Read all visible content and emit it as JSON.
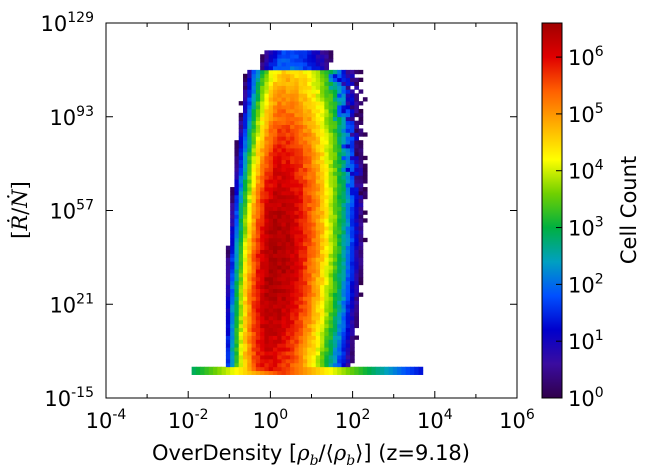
{
  "chart_data": {
    "type": "heatmap",
    "title": "",
    "xlabel": "OverDensity [ρb/⟨ρb⟩] (z=9.18)",
    "xlabel_parts": {
      "prefix": "OverDensity [",
      "rho": "ρ",
      "sub": "b",
      "slash": "/⟨",
      "rho2": "ρ",
      "sub2": "b",
      "close": "⟩] (z=9.18)"
    },
    "ylabel": "[Ṙ/Ṅ]",
    "ylabel_parts": {
      "open": "[",
      "r": "Ṙ",
      "slash": "/",
      "n": "Ṅ",
      "close": "]"
    },
    "xscale": "log",
    "yscale": "log",
    "xlim_log10": [
      -4,
      6
    ],
    "ylim_log10": [
      -15,
      129
    ],
    "x_ticks": [
      {
        "base": "10",
        "exp": "-4",
        "log10": -4
      },
      {
        "base": "10",
        "exp": "-2",
        "log10": -2
      },
      {
        "base": "10",
        "exp": "0",
        "log10": 0
      },
      {
        "base": "10",
        "exp": "2",
        "log10": 2
      },
      {
        "base": "10",
        "exp": "4",
        "log10": 4
      },
      {
        "base": "10",
        "exp": "6",
        "log10": 6
      }
    ],
    "y_ticks": [
      {
        "base": "10",
        "exp": "-15",
        "log10": -15
      },
      {
        "base": "10",
        "exp": "21",
        "log10": 21
      },
      {
        "base": "10",
        "exp": "57",
        "log10": 57
      },
      {
        "base": "10",
        "exp": "93",
        "log10": 93
      },
      {
        "base": "10",
        "exp": "129",
        "log10": 129
      }
    ],
    "colorbar": {
      "label": "Cell Count",
      "scale": "log",
      "range_log10": [
        0,
        6.6
      ],
      "ticks": [
        {
          "base": "10",
          "exp": "0",
          "log10": 0
        },
        {
          "base": "10",
          "exp": "1",
          "log10": 1
        },
        {
          "base": "10",
          "exp": "2",
          "log10": 2
        },
        {
          "base": "10",
          "exp": "3",
          "log10": 3
        },
        {
          "base": "10",
          "exp": "4",
          "log10": 4
        },
        {
          "base": "10",
          "exp": "5",
          "log10": 5
        },
        {
          "base": "10",
          "exp": "6",
          "log10": 6
        }
      ],
      "colormap": [
        "#30004a",
        "#3a0ca0",
        "#0000cc",
        "#0050ff",
        "#00a0c0",
        "#00b040",
        "#70d000",
        "#ffff00",
        "#ffb000",
        "#ff6000",
        "#e00000",
        "#a00000"
      ]
    },
    "distribution": {
      "x_range_log10": [
        -1.1,
        3.7
      ],
      "y_range_log10": [
        -5,
        119
      ],
      "core_x_log10": -0.1,
      "core_y_log10": 37,
      "peak_count_log10": 6.5,
      "floor_row_y_log10": -4,
      "floor_row_x_range_log10": [
        -1.9,
        3.7
      ]
    }
  }
}
